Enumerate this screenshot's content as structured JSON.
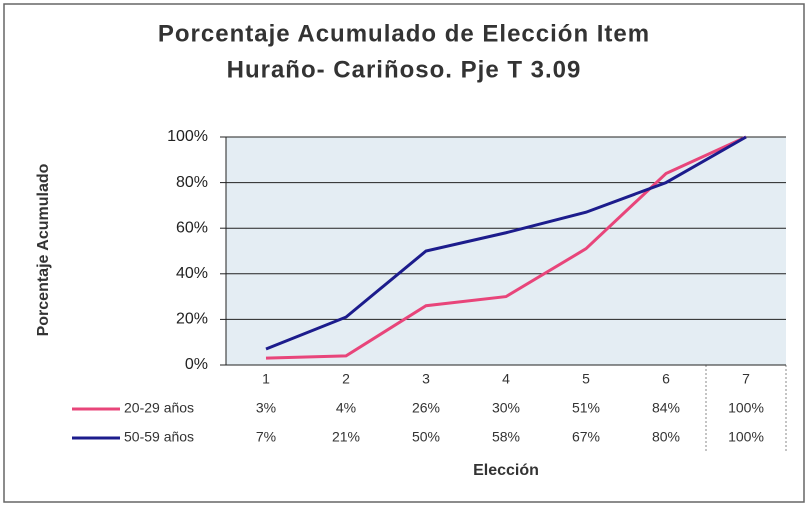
{
  "chart_data": {
    "type": "line",
    "title": [
      "Porcentaje Acumulado de Elección Item",
      "Huraño- Cariñoso. Pje T 3.09"
    ],
    "y_label": "Porcentaje Acumulado",
    "x_label": "Elección",
    "categories": [
      "1",
      "2",
      "3",
      "4",
      "5",
      "6",
      "7"
    ],
    "series": [
      {
        "name": "20-29 años",
        "color": "#e8457a",
        "values": [
          3,
          4,
          26,
          30,
          51,
          84,
          100
        ],
        "value_labels": [
          "3%",
          "4%",
          "26%",
          "30%",
          "51%",
          "84%",
          "100%"
        ]
      },
      {
        "name": "50-59 años",
        "color": "#1c1c8c",
        "values": [
          7,
          21,
          50,
          58,
          67,
          80,
          100
        ],
        "value_labels": [
          "7%",
          "21%",
          "50%",
          "58%",
          "67%",
          "80%",
          "100%"
        ]
      }
    ],
    "ylim": [
      0,
      100
    ],
    "yticks": [
      {
        "value": 0,
        "label": "0%"
      },
      {
        "value": 20,
        "label": "20%"
      },
      {
        "value": 40,
        "label": "40%"
      },
      {
        "value": 60,
        "label": "60%"
      },
      {
        "value": 80,
        "label": "80%"
      },
      {
        "value": 100,
        "label": "100%"
      }
    ],
    "grid": true
  }
}
